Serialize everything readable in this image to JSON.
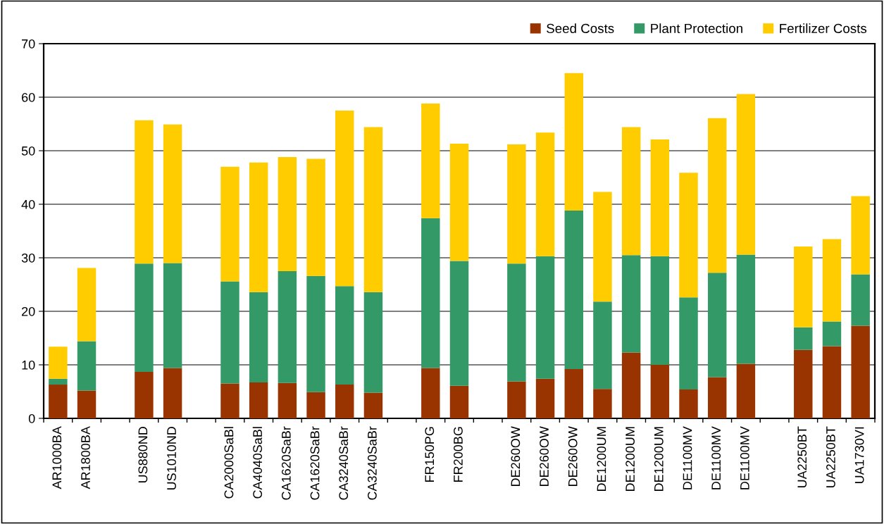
{
  "chart_data": {
    "type": "bar",
    "stacked": true,
    "categories": [
      "AR1000BA",
      "AR1800BA",
      null,
      "US880ND",
      "US1010ND",
      null,
      "CA2000SaBl",
      "CA4040SaBl",
      "CA1620SaBr",
      "CA1620SaBr",
      "CA3240SaBr",
      "CA3240SaBr",
      null,
      "FR150PG",
      "FR200BG",
      null,
      "DE260OW",
      "DE260OW",
      "DE260OW",
      "DE1200UM",
      "DE1200UM",
      "DE1200UM",
      "DE1100MV",
      "DE1100MV",
      "DE1100MV",
      null,
      "UA2250BT",
      "UA2250BT",
      "UA1730VI"
    ],
    "series": [
      {
        "name": "Seed Costs",
        "color": "#993300",
        "values": [
          6.3,
          5.2,
          null,
          8.7,
          9.4,
          null,
          6.5,
          6.7,
          6.6,
          4.9,
          6.3,
          4.8,
          null,
          9.4,
          6.1,
          null,
          6.9,
          7.4,
          9.2,
          5.5,
          12.3,
          10.0,
          5.4,
          7.7,
          10.2,
          null,
          12.8,
          13.5,
          17.3
        ]
      },
      {
        "name": "Plant Protection",
        "color": "#339966",
        "values": [
          1.1,
          9.2,
          null,
          20.2,
          19.6,
          null,
          19.1,
          16.9,
          20.9,
          21.7,
          18.4,
          18.8,
          null,
          28.0,
          23.3,
          null,
          22.0,
          22.9,
          29.6,
          16.3,
          18.2,
          20.3,
          17.2,
          19.5,
          20.4,
          null,
          4.2,
          4.6,
          9.6
        ]
      },
      {
        "name": "Fertilizer Costs",
        "color": "#ffcc00",
        "values": [
          6.0,
          13.7,
          null,
          26.8,
          25.9,
          null,
          21.4,
          24.2,
          21.3,
          21.9,
          32.8,
          30.8,
          null,
          21.4,
          21.9,
          null,
          22.3,
          23.1,
          25.7,
          20.5,
          23.9,
          21.8,
          23.3,
          28.9,
          30.0,
          null,
          15.1,
          15.4,
          14.6
        ]
      }
    ],
    "ylim": [
      0,
      70
    ],
    "yticks": [
      0,
      10,
      20,
      30,
      40,
      50,
      60,
      70
    ],
    "grid": "y",
    "legend": "top right"
  }
}
